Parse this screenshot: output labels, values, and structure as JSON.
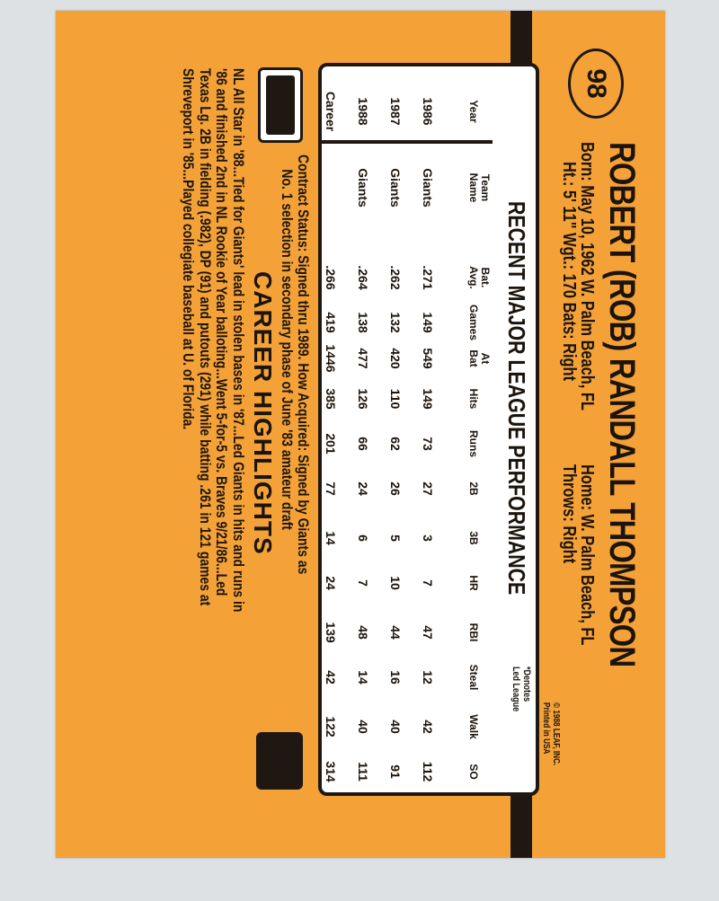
{
  "card_number": "98",
  "name": "ROBERT (ROB) RANDALL THOMPSON",
  "bio": {
    "born": "Born: May 10, 1962  W. Palm Beach, FL",
    "home": "Home: W. Palm Beach, FL",
    "height_weight": "Ht.: 5' 11\"  Wgt.: 170  Bats: Right",
    "throws": "Throws: Right"
  },
  "copyright": [
    "© 1988 LEAF, INC.",
    "Printed in USA"
  ],
  "stats": {
    "title": "RECENT MAJOR LEAGUE PERFORMANCE",
    "note": [
      "*Denotes",
      "Led League"
    ],
    "columns": [
      [
        "Year"
      ],
      [
        "Team",
        "Name"
      ],
      [
        "Bat.",
        "Avg."
      ],
      [
        "Games"
      ],
      [
        "At",
        "Bat"
      ],
      [
        "Hits"
      ],
      [
        "Runs"
      ],
      [
        "2B"
      ],
      [
        "3B"
      ],
      [
        "HR"
      ],
      [
        "RBI"
      ],
      [
        "Steal"
      ],
      [
        "Walk"
      ],
      [
        "SO"
      ]
    ],
    "rows": [
      [
        "1986",
        "Giants",
        ".271",
        "149",
        "549",
        "149",
        "73",
        "27",
        "3",
        "7",
        "47",
        "12",
        "42",
        "112"
      ],
      [
        "1987",
        "Giants",
        ".262",
        "132",
        "420",
        "110",
        "62",
        "26",
        "5",
        "10",
        "44",
        "16",
        "40",
        "91"
      ],
      [
        "1988",
        "Giants",
        ".264",
        "138",
        "477",
        "126",
        "66",
        "24",
        "6",
        "7",
        "48",
        "14",
        "40",
        "111"
      ],
      [
        "Career",
        "",
        ".266",
        "419",
        "1446",
        "385",
        "201",
        "77",
        "14",
        "24",
        "139",
        "42",
        "122",
        "314"
      ]
    ]
  },
  "contract": [
    "Contract Status: Signed thru 1989. How Acquired: Signed by Giants as",
    "No. 1 selection in secondary phase of June '83 amateur draft"
  ],
  "highlights_title": "CAREER HIGHLIGHTS",
  "highlights": [
    "NL All Star in '88...Tied for Giants' lead in stolen bases in '87...Led Giants in hits and runs in",
    "'86 and finished 2nd in NL Rookie of Year balloting...Went 5-for-5 vs. Braves 9/21/86...Led",
    "Texas Lg. 2B in fielding (.982), DP (91) and putouts (291) while batting .261 in 121 games at",
    "Shreveport in '85...Played collegiate baseball at U. of Florida."
  ],
  "colors": {
    "card": "#f4a238",
    "ink": "#1f1812"
  }
}
